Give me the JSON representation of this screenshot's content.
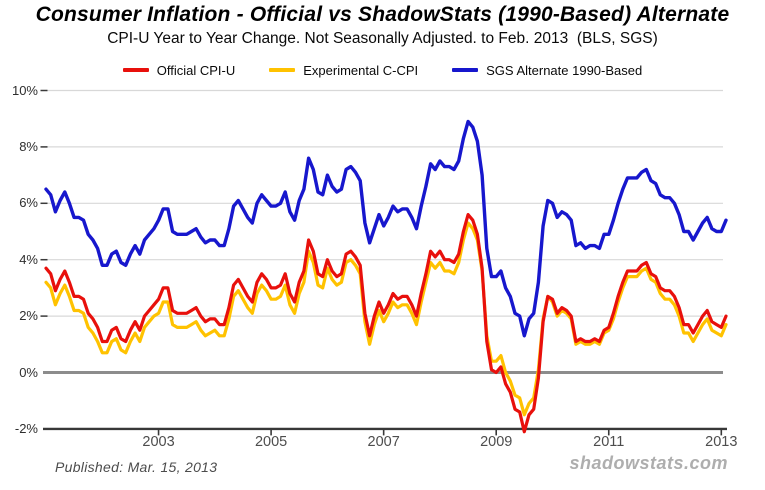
{
  "header": {
    "title": "Consumer Inflation - Official vs ShadowStats (1990-Based) Alternate",
    "subtitle": "CPI-U Year to Year Change. Not Seasonally Adjusted. to Feb. 2013  (BLS, SGS)"
  },
  "legend": [
    {
      "label": "Official CPI-U",
      "color": "#e8100c"
    },
    {
      "label": "Experimental C-CPI",
      "color": "#ffc200"
    },
    {
      "label": "SGS  Alternate 1990-Based",
      "color": "#1717cd"
    }
  ],
  "footer": {
    "published": "Published: Mar. 15, 2013",
    "watermark": "shadowstats.com"
  },
  "chart_data": {
    "type": "line",
    "title": "Consumer Inflation - Official vs ShadowStats (1990-Based) Alternate",
    "x_unit": "month",
    "x_start": "2001-01",
    "x_end": "2013-02",
    "ylim": [
      -2,
      10
    ],
    "grid": true,
    "y_tick_labels": [
      "10%",
      "8%",
      "6%",
      "4%",
      "2%",
      "0%",
      "-2%"
    ],
    "y_tick_values": [
      10,
      8,
      6,
      4,
      2,
      0,
      -2
    ],
    "x_tick_labels": [
      "2003",
      "2005",
      "2007",
      "2009",
      "2011",
      "2013"
    ],
    "x_tick_years": [
      2003,
      2005,
      2007,
      2009,
      2011,
      2013
    ],
    "series": [
      {
        "name": "Official CPI-U",
        "color": "#e8100c",
        "values": [
          3.7,
          3.5,
          2.9,
          3.3,
          3.6,
          3.2,
          2.7,
          2.7,
          2.6,
          2.1,
          1.9,
          1.6,
          1.1,
          1.1,
          1.5,
          1.6,
          1.2,
          1.1,
          1.5,
          1.8,
          1.5,
          2.0,
          2.2,
          2.4,
          2.6,
          3.0,
          3.0,
          2.2,
          2.1,
          2.1,
          2.1,
          2.2,
          2.3,
          2.0,
          1.8,
          1.9,
          1.9,
          1.7,
          1.7,
          2.3,
          3.1,
          3.3,
          3.0,
          2.7,
          2.5,
          3.2,
          3.5,
          3.3,
          3.0,
          3.0,
          3.1,
          3.5,
          2.8,
          2.5,
          3.2,
          3.6,
          4.7,
          4.3,
          3.5,
          3.4,
          4.0,
          3.6,
          3.4,
          3.5,
          4.2,
          4.3,
          4.1,
          3.8,
          2.1,
          1.3,
          2.0,
          2.5,
          2.1,
          2.4,
          2.8,
          2.6,
          2.7,
          2.7,
          2.4,
          2.0,
          2.8,
          3.5,
          4.3,
          4.1,
          4.3,
          4.0,
          4.0,
          3.9,
          4.2,
          5.0,
          5.6,
          5.4,
          4.9,
          3.7,
          1.1,
          0.1,
          0.0,
          0.2,
          -0.4,
          -0.7,
          -1.3,
          -1.4,
          -2.1,
          -1.5,
          -1.3,
          -0.2,
          1.8,
          2.7,
          2.6,
          2.1,
          2.3,
          2.2,
          2.0,
          1.1,
          1.2,
          1.1,
          1.1,
          1.2,
          1.1,
          1.5,
          1.6,
          2.1,
          2.7,
          3.2,
          3.6,
          3.6,
          3.6,
          3.8,
          3.9,
          3.5,
          3.4,
          3.0,
          2.9,
          2.9,
          2.7,
          2.3,
          1.7,
          1.7,
          1.4,
          1.7,
          2.0,
          2.2,
          1.8,
          1.7,
          1.6,
          2.0
        ]
      },
      {
        "name": "Experimental C-CPI",
        "color": "#ffc200",
        "values": [
          3.2,
          3.0,
          2.4,
          2.8,
          3.1,
          2.7,
          2.2,
          2.2,
          2.1,
          1.6,
          1.4,
          1.1,
          0.7,
          0.7,
          1.1,
          1.2,
          0.8,
          0.7,
          1.1,
          1.4,
          1.1,
          1.6,
          1.8,
          2.0,
          2.1,
          2.5,
          2.5,
          1.7,
          1.6,
          1.6,
          1.6,
          1.7,
          1.8,
          1.5,
          1.3,
          1.4,
          1.5,
          1.3,
          1.3,
          1.9,
          2.7,
          2.9,
          2.6,
          2.3,
          2.1,
          2.8,
          3.1,
          2.9,
          2.6,
          2.6,
          2.7,
          3.1,
          2.4,
          2.1,
          2.8,
          3.2,
          4.3,
          3.9,
          3.1,
          3.0,
          3.7,
          3.3,
          3.1,
          3.2,
          3.9,
          4.0,
          3.8,
          3.5,
          1.8,
          1.0,
          1.7,
          2.2,
          1.8,
          2.1,
          2.5,
          2.3,
          2.4,
          2.4,
          2.1,
          1.7,
          2.5,
          3.2,
          3.9,
          3.7,
          3.9,
          3.6,
          3.6,
          3.5,
          3.9,
          4.7,
          5.3,
          5.1,
          4.7,
          3.6,
          1.3,
          0.4,
          0.4,
          0.6,
          0.0,
          -0.3,
          -0.8,
          -0.9,
          -1.5,
          -1.1,
          -0.9,
          0.1,
          1.9,
          2.7,
          2.5,
          2.0,
          2.2,
          2.1,
          1.9,
          1.0,
          1.1,
          1.0,
          1.0,
          1.1,
          1.0,
          1.4,
          1.5,
          1.9,
          2.5,
          3.0,
          3.4,
          3.4,
          3.4,
          3.6,
          3.7,
          3.3,
          3.2,
          2.8,
          2.6,
          2.6,
          2.4,
          2.0,
          1.4,
          1.4,
          1.1,
          1.4,
          1.7,
          1.9,
          1.5,
          1.4,
          1.3,
          1.7
        ]
      },
      {
        "name": "SGS Alternate 1990-Based",
        "color": "#1717cd",
        "values": [
          6.5,
          6.3,
          5.7,
          6.1,
          6.4,
          6.0,
          5.5,
          5.5,
          5.4,
          4.9,
          4.7,
          4.4,
          3.8,
          3.8,
          4.2,
          4.3,
          3.9,
          3.8,
          4.2,
          4.5,
          4.2,
          4.7,
          4.9,
          5.1,
          5.4,
          5.8,
          5.8,
          5.0,
          4.9,
          4.9,
          4.9,
          5.0,
          5.1,
          4.8,
          4.6,
          4.7,
          4.7,
          4.5,
          4.5,
          5.1,
          5.9,
          6.1,
          5.8,
          5.5,
          5.3,
          6.0,
          6.3,
          6.1,
          5.9,
          5.9,
          6.0,
          6.4,
          5.7,
          5.4,
          6.1,
          6.5,
          7.6,
          7.2,
          6.4,
          6.3,
          7.0,
          6.6,
          6.4,
          6.5,
          7.2,
          7.3,
          7.1,
          6.8,
          5.3,
          4.6,
          5.1,
          5.6,
          5.2,
          5.5,
          5.9,
          5.7,
          5.8,
          5.8,
          5.5,
          5.1,
          5.9,
          6.6,
          7.4,
          7.2,
          7.5,
          7.3,
          7.3,
          7.2,
          7.5,
          8.3,
          8.9,
          8.7,
          8.2,
          7.0,
          4.4,
          3.4,
          3.4,
          3.6,
          3.0,
          2.7,
          2.1,
          2.0,
          1.3,
          1.9,
          2.1,
          3.2,
          5.2,
          6.1,
          6.0,
          5.5,
          5.7,
          5.6,
          5.4,
          4.5,
          4.6,
          4.4,
          4.5,
          4.5,
          4.4,
          4.9,
          4.9,
          5.4,
          6.0,
          6.5,
          6.9,
          6.9,
          6.9,
          7.1,
          7.2,
          6.8,
          6.7,
          6.3,
          6.2,
          6.2,
          6.0,
          5.6,
          5.0,
          5.0,
          4.7,
          5.0,
          5.3,
          5.5,
          5.1,
          5.0,
          5.0,
          5.4
        ]
      }
    ]
  }
}
